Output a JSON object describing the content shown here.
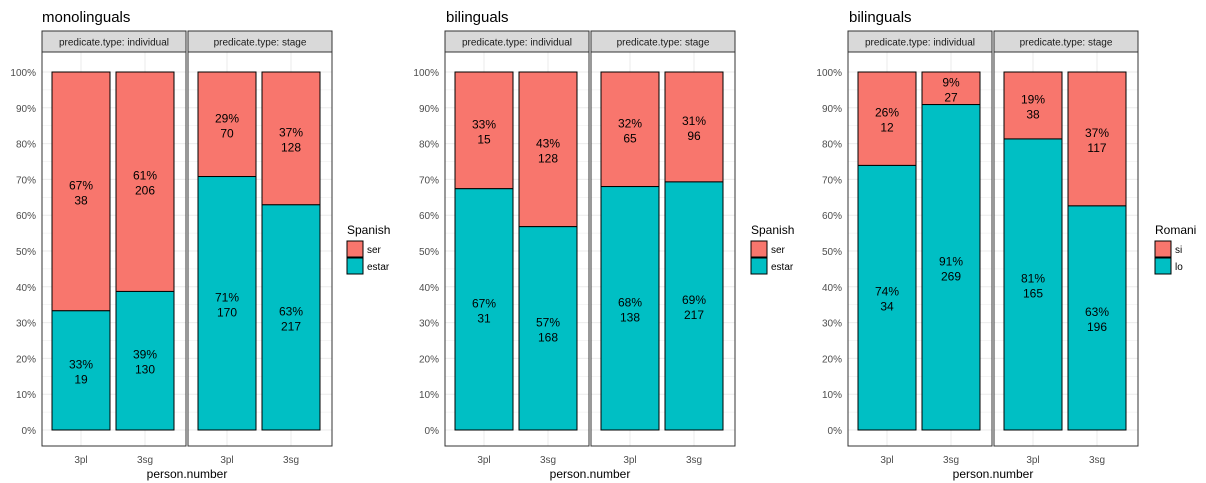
{
  "colors": {
    "top_fill": "#F8766D",
    "bottom_fill": "#00BFC4",
    "strip_fill": "#D9D9D9",
    "grid": "#EBEBEB",
    "frame": "#333333",
    "tick_text": "#4D4D4D",
    "text": "#000000"
  },
  "chart_data": [
    {
      "type": "bar",
      "stacked": "percent",
      "title": "monolinguals",
      "xlabel": "person.number",
      "ylabel": "",
      "ylim": [
        0,
        1
      ],
      "y_ticks": [
        "0%",
        "10%",
        "20%",
        "30%",
        "40%",
        "50%",
        "60%",
        "70%",
        "80%",
        "90%",
        "100%"
      ],
      "grid": true,
      "categories": [
        "3pl",
        "3sg"
      ],
      "legend": {
        "title": "Spanish",
        "entries": [
          "ser",
          "estar"
        ],
        "position": "right"
      },
      "facets": [
        {
          "label": "predicate.type: individual",
          "bars": [
            {
              "x": "3pl",
              "top_pct": "67%",
              "top_n": "38",
              "bottom_pct": "33%",
              "bottom_n": "19",
              "top_share": 0.667
            },
            {
              "x": "3sg",
              "top_pct": "61%",
              "top_n": "206",
              "bottom_pct": "39%",
              "bottom_n": "130",
              "top_share": 0.613
            }
          ]
        },
        {
          "label": "predicate.type: stage",
          "bars": [
            {
              "x": "3pl",
              "top_pct": "29%",
              "top_n": "70",
              "bottom_pct": "71%",
              "bottom_n": "170",
              "top_share": 0.292
            },
            {
              "x": "3sg",
              "top_pct": "37%",
              "top_n": "128",
              "bottom_pct": "63%",
              "bottom_n": "217",
              "top_share": 0.371
            }
          ]
        }
      ]
    },
    {
      "type": "bar",
      "stacked": "percent",
      "title": "bilinguals",
      "xlabel": "person.number",
      "ylabel": "",
      "ylim": [
        0,
        1
      ],
      "y_ticks": [
        "0%",
        "10%",
        "20%",
        "30%",
        "40%",
        "50%",
        "60%",
        "70%",
        "80%",
        "90%",
        "100%"
      ],
      "grid": true,
      "categories": [
        "3pl",
        "3sg"
      ],
      "legend": {
        "title": "Spanish",
        "entries": [
          "ser",
          "estar"
        ],
        "position": "right"
      },
      "facets": [
        {
          "label": "predicate.type: individual",
          "bars": [
            {
              "x": "3pl",
              "top_pct": "33%",
              "top_n": "15",
              "bottom_pct": "67%",
              "bottom_n": "31",
              "top_share": 0.326
            },
            {
              "x": "3sg",
              "top_pct": "43%",
              "top_n": "128",
              "bottom_pct": "57%",
              "bottom_n": "168",
              "top_share": 0.432
            }
          ]
        },
        {
          "label": "predicate.type: stage",
          "bars": [
            {
              "x": "3pl",
              "top_pct": "32%",
              "top_n": "65",
              "bottom_pct": "68%",
              "bottom_n": "138",
              "top_share": 0.32
            },
            {
              "x": "3sg",
              "top_pct": "31%",
              "top_n": "96",
              "bottom_pct": "69%",
              "bottom_n": "217",
              "top_share": 0.307
            }
          ]
        }
      ]
    },
    {
      "type": "bar",
      "stacked": "percent",
      "title": "bilinguals",
      "xlabel": "person.number",
      "ylabel": "",
      "ylim": [
        0,
        1
      ],
      "y_ticks": [
        "0%",
        "10%",
        "20%",
        "30%",
        "40%",
        "50%",
        "60%",
        "70%",
        "80%",
        "90%",
        "100%"
      ],
      "grid": true,
      "categories": [
        "3pl",
        "3sg",
        "3pl",
        "3sg"
      ],
      "legend": {
        "title": "Romani",
        "entries": [
          "si",
          "lo"
        ],
        "position": "right"
      },
      "facets": [
        {
          "label": "predicate.type: individual",
          "bars": [
            {
              "x": "3pl",
              "top_pct": "26%",
              "top_n": "12",
              "bottom_pct": "74%",
              "bottom_n": "34",
              "top_share": 0.261
            },
            {
              "x": "3sg",
              "top_pct": "9%",
              "top_n": "27",
              "bottom_pct": "91%",
              "bottom_n": "269",
              "top_share": 0.091
            }
          ]
        },
        {
          "label": "predicate.type: stage",
          "bars": [
            {
              "x": "3pl",
              "top_pct": "19%",
              "top_n": "38",
              "bottom_pct": "81%",
              "bottom_n": "165",
              "top_share": 0.187
            },
            {
              "x": "3sg",
              "top_pct": "37%",
              "top_n": "117",
              "bottom_pct": "63%",
              "bottom_n": "196",
              "top_share": 0.374
            }
          ]
        }
      ]
    }
  ]
}
